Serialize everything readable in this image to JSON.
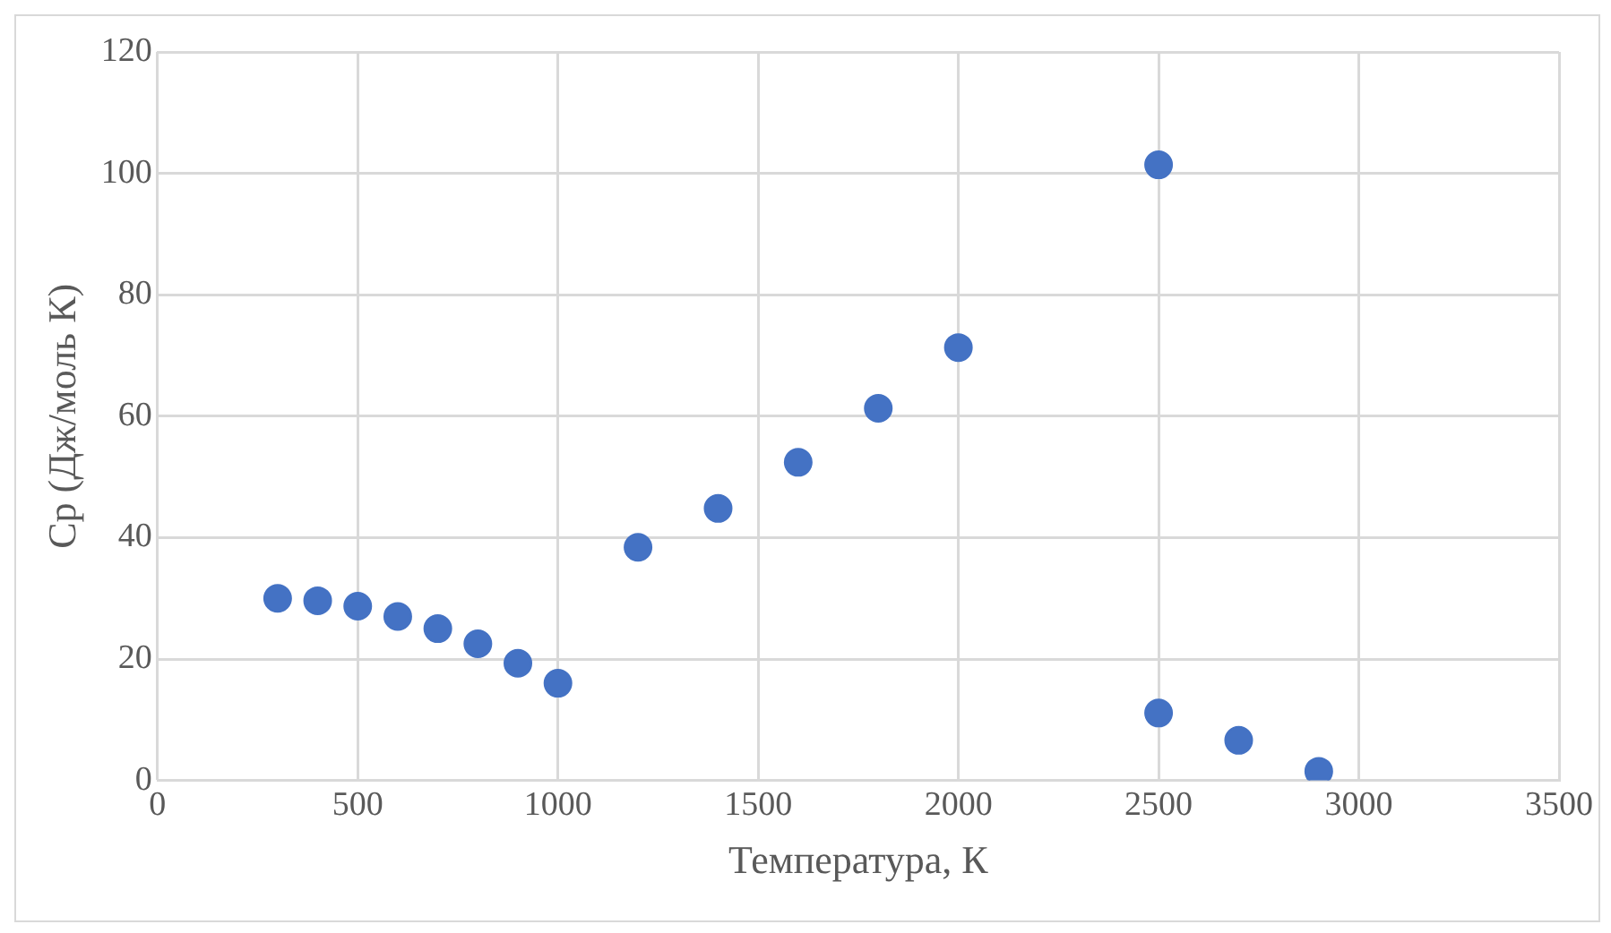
{
  "chart_data": {
    "type": "scatter",
    "xlabel": "Температура, К",
    "ylabel": "Cp (Дж/моль К)",
    "x": [
      300,
      400,
      500,
      600,
      700,
      800,
      900,
      1000,
      1200,
      1400,
      1600,
      1800,
      2000,
      2500,
      2500,
      2700,
      2900
    ],
    "values": [
      30,
      29.6,
      28.7,
      27,
      25,
      22.5,
      19.3,
      16,
      38.4,
      44.8,
      52.4,
      61.3,
      71.3,
      101.4,
      11.1,
      6.6,
      1.5
    ],
    "color": "#4472c4",
    "marker": "circle",
    "xlim": [
      0,
      3500
    ],
    "xticks": [
      0,
      500,
      1000,
      1500,
      2000,
      2500,
      3000,
      3500
    ],
    "ylim": [
      0,
      120
    ],
    "yticks": [
      0,
      20,
      40,
      60,
      80,
      100,
      120
    ],
    "grid": true,
    "legend": false
  }
}
